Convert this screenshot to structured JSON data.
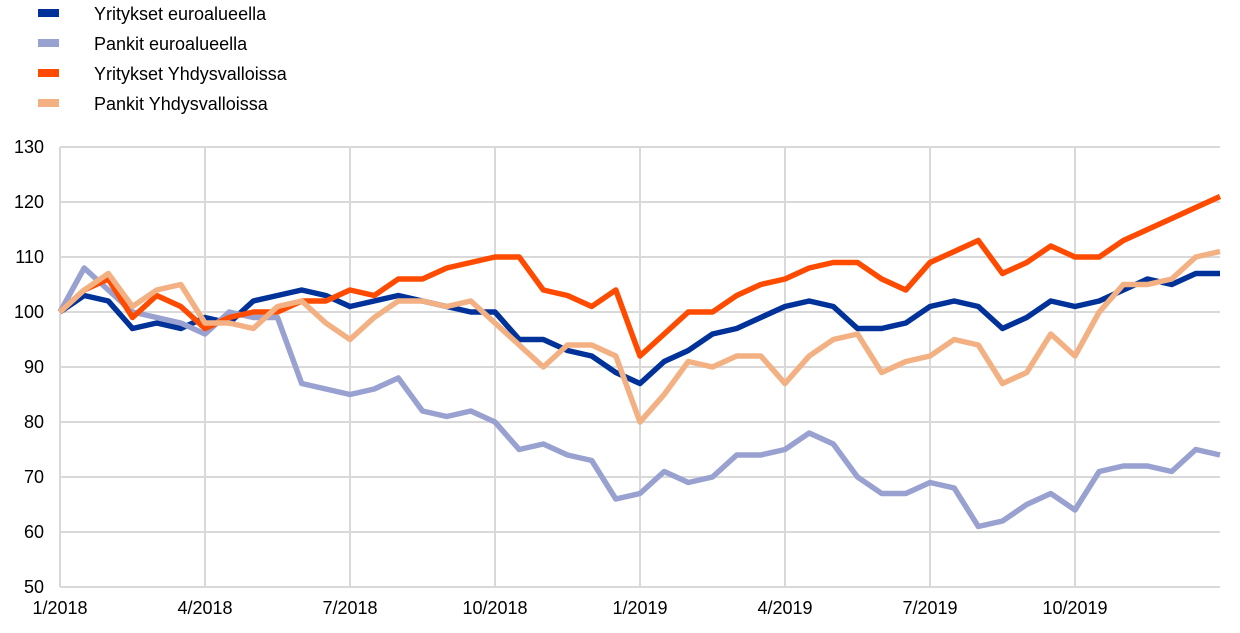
{
  "chart_data": {
    "type": "line",
    "title": "",
    "xlabel": "",
    "ylabel": "",
    "ylim": [
      50,
      130
    ],
    "yticks": [
      50,
      60,
      70,
      80,
      90,
      100,
      110,
      120,
      130
    ],
    "xlim": [
      "2018-01",
      "2020-01"
    ],
    "xtick_labels": [
      "1/2018",
      "4/2018",
      "7/2018",
      "10/2018",
      "1/2019",
      "4/2019",
      "7/2019",
      "10/2019"
    ],
    "grid": true,
    "legend_position": "top-left",
    "x_note": "half-monthly samples from 1/2018 to end of 2019",
    "x": [
      "2018-01-01",
      "2018-01-16",
      "2018-02-01",
      "2018-02-15",
      "2018-03-01",
      "2018-03-16",
      "2018-04-01",
      "2018-04-16",
      "2018-05-01",
      "2018-05-16",
      "2018-06-01",
      "2018-06-16",
      "2018-07-01",
      "2018-07-16",
      "2018-08-01",
      "2018-08-16",
      "2018-09-01",
      "2018-09-16",
      "2018-10-01",
      "2018-10-16",
      "2018-11-01",
      "2018-11-16",
      "2018-12-01",
      "2018-12-16",
      "2019-01-01",
      "2019-01-16",
      "2019-02-01",
      "2019-02-15",
      "2019-03-01",
      "2019-03-16",
      "2019-04-01",
      "2019-04-16",
      "2019-05-01",
      "2019-05-16",
      "2019-06-01",
      "2019-06-16",
      "2019-07-01",
      "2019-07-16",
      "2019-08-01",
      "2019-08-16",
      "2019-09-01",
      "2019-09-16",
      "2019-10-01",
      "2019-10-16",
      "2019-11-01",
      "2019-11-16",
      "2019-12-01",
      "2019-12-16",
      "2019-12-31"
    ],
    "series": [
      {
        "name": "Yritykset euroalueella",
        "color": "#003299",
        "values": [
          100,
          103,
          102,
          97,
          98,
          97,
          99,
          98,
          102,
          103,
          104,
          103,
          101,
          102,
          103,
          102,
          101,
          100,
          100,
          95,
          95,
          93,
          92,
          89,
          87,
          91,
          93,
          96,
          97,
          99,
          101,
          102,
          101,
          97,
          97,
          98,
          101,
          102,
          101,
          97,
          99,
          102,
          101,
          102,
          104,
          106,
          105,
          107,
          107
        ]
      },
      {
        "name": "Pankit euroalueella",
        "color": "#98A1D0",
        "values": [
          100,
          108,
          104,
          100,
          99,
          98,
          96,
          100,
          99,
          99,
          87,
          86,
          85,
          86,
          88,
          82,
          81,
          82,
          80,
          75,
          76,
          74,
          73,
          66,
          67,
          71,
          69,
          70,
          74,
          74,
          75,
          78,
          76,
          70,
          67,
          67,
          69,
          68,
          61,
          62,
          65,
          67,
          64,
          71,
          72,
          72,
          71,
          75,
          74
        ]
      },
      {
        "name": "Yritykset Yhdysvalloissa",
        "color": "#FF4B00",
        "values": [
          100,
          104,
          106,
          99,
          103,
          101,
          97,
          99,
          100,
          100,
          102,
          102,
          104,
          103,
          106,
          106,
          108,
          109,
          110,
          110,
          104,
          103,
          101,
          104,
          92,
          96,
          100,
          100,
          103,
          105,
          106,
          108,
          109,
          109,
          106,
          104,
          109,
          111,
          113,
          107,
          109,
          112,
          110,
          110,
          113,
          115,
          117,
          119,
          121
        ]
      },
      {
        "name": "Pankit Yhdysvalloissa",
        "color": "#F3B183",
        "values": [
          100,
          104,
          107,
          101,
          104,
          105,
          98,
          98,
          97,
          101,
          102,
          98,
          95,
          99,
          102,
          102,
          101,
          102,
          98,
          94,
          90,
          94,
          94,
          92,
          80,
          85,
          91,
          90,
          92,
          92,
          87,
          92,
          95,
          96,
          89,
          91,
          92,
          95,
          94,
          87,
          89,
          96,
          92,
          100,
          105,
          105,
          106,
          110,
          111
        ]
      }
    ]
  }
}
